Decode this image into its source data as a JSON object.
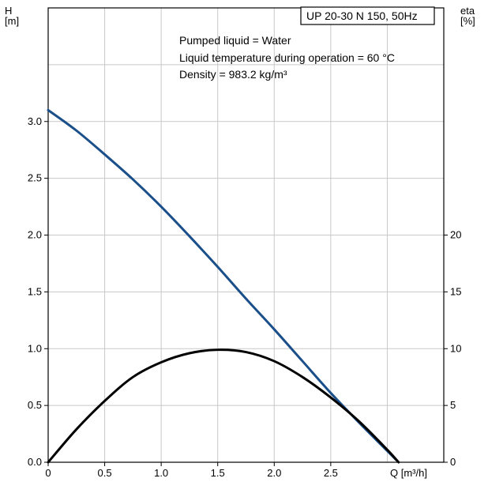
{
  "chart_data": {
    "type": "line",
    "title": "UP 20-30 N 150, 50Hz",
    "annotations": [
      "Pumped liquid = Water",
      "Liquid temperature during operation = 60 °C",
      "Density = 983.2 kg/m³"
    ],
    "xlabel": "Q [m³/h]",
    "ylabel": "H\n[m]",
    "ylabel_right": "eta\n[%]",
    "xlim": [
      0,
      3.5
    ],
    "ylim": [
      0,
      4.0
    ],
    "ylim_right": [
      0,
      40
    ],
    "x_ticks": [
      "0",
      "0.5",
      "1.0",
      "1.5",
      "2.0",
      "2.5"
    ],
    "y_ticks": [
      "0.0",
      "0.5",
      "1.0",
      "1.5",
      "2.0",
      "2.5",
      "3.0"
    ],
    "y_ticks_right": [
      "0",
      "5",
      "10",
      "15",
      "20"
    ],
    "grid": true,
    "series": [
      {
        "axis": "left",
        "color": "#1b4f8a",
        "x": [
          0,
          0.25,
          0.5,
          0.75,
          1.0,
          1.25,
          1.5,
          1.75,
          2.0,
          2.25,
          2.5,
          2.75,
          3.0,
          3.08
        ],
        "values": [
          3.1,
          2.92,
          2.71,
          2.49,
          2.25,
          1.99,
          1.72,
          1.44,
          1.17,
          0.89,
          0.61,
          0.35,
          0.1,
          0.02
        ]
      },
      {
        "axis": "right",
        "color": "#000000",
        "x": [
          0,
          0.25,
          0.5,
          0.75,
          1.0,
          1.25,
          1.5,
          1.75,
          2.0,
          2.25,
          2.5,
          2.75,
          3.0,
          3.1
        ],
        "values": [
          0,
          2.9,
          5.4,
          7.5,
          8.8,
          9.6,
          9.9,
          9.7,
          8.9,
          7.5,
          5.7,
          3.6,
          1.1,
          0
        ]
      }
    ]
  }
}
